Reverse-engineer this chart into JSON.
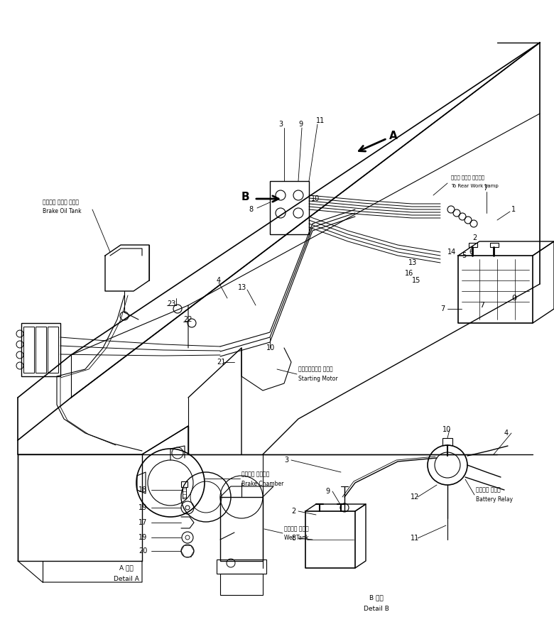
{
  "bg_color": "#ffffff",
  "fig_width": 7.8,
  "fig_height": 8.69,
  "dpi": 100,
  "labels": {
    "brake_oil_tank_jp": "ブレーキ オイル タンク",
    "brake_oil_tank_en": "Brake Oil Tank",
    "starting_motor_jp": "スターティング モータ",
    "starting_motor_en": "Starting Motor",
    "brake_chamber_jp": "ブレーキ チャンバ",
    "brake_chamber_en": "Brake Chamber",
    "wet_tank_jp": "ウェット タンク",
    "wet_tank_en": "Wet Tank",
    "rear_work_lamp_jp": "リヤー ワーク ランプへ",
    "rear_work_lamp_en": "To Rear Work Lamp",
    "detail_a_jp": "A 詳細",
    "detail_a_en": "Detail A",
    "detail_b_jp": "B 詳細",
    "detail_b_en": "Detail B",
    "battery_relay_jp": "バッテリ リレー",
    "battery_relay_en": "Battery Relay"
  }
}
